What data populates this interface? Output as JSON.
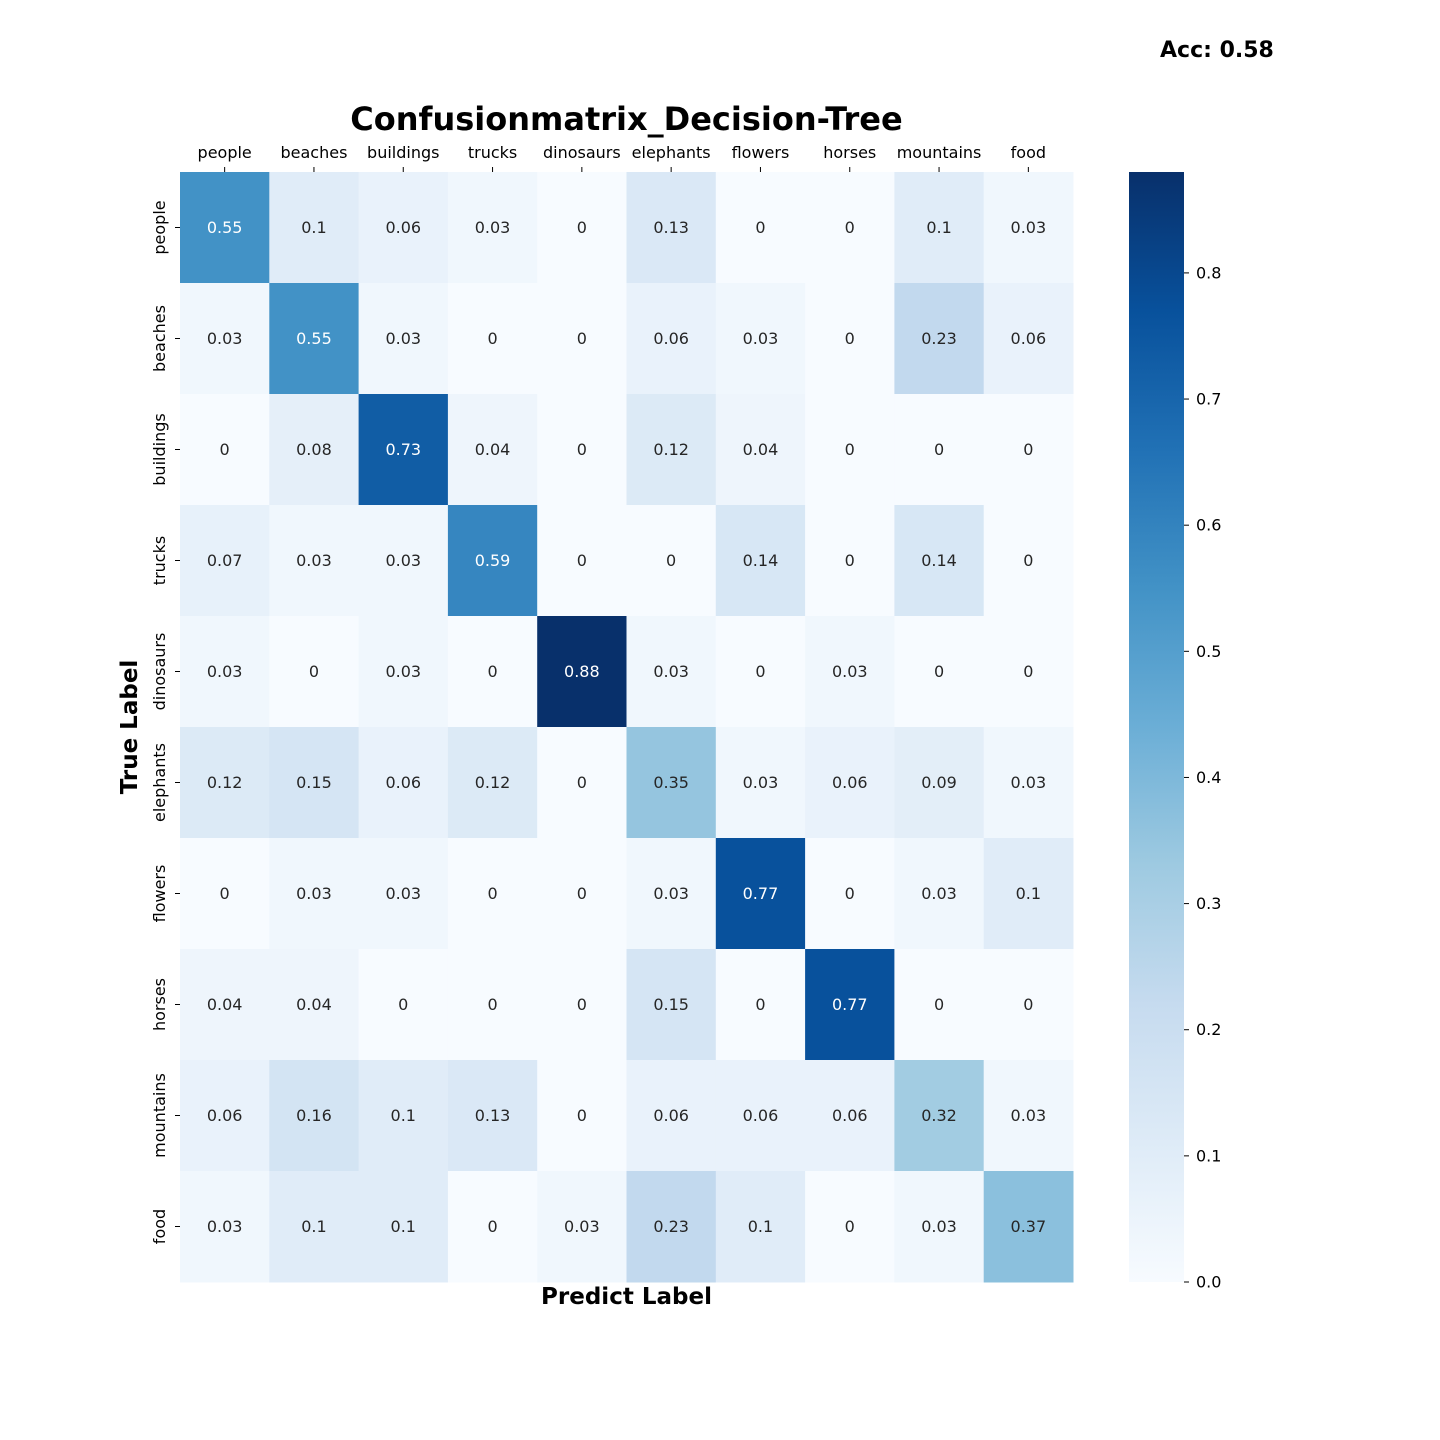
{
  "accuracy_label": "Acc: 0.58",
  "chart_data": {
    "type": "heatmap",
    "title": "Confusionmatrix_Decision-Tree",
    "xlabel": "Predict Label",
    "ylabel": "True Label",
    "x_categories": [
      "people",
      "beaches",
      "buildings",
      "trucks",
      "dinosaurs",
      "elephants",
      "flowers",
      "horses",
      "mountains",
      "food"
    ],
    "y_categories": [
      "people",
      "beaches",
      "buildings",
      "trucks",
      "dinosaurs",
      "elephants",
      "flowers",
      "horses",
      "mountains",
      "food"
    ],
    "x_axis_position": "top",
    "values": [
      [
        0.55,
        0.1,
        0.06,
        0.03,
        0,
        0.13,
        0,
        0,
        0.1,
        0.03
      ],
      [
        0.03,
        0.55,
        0.03,
        0,
        0,
        0.06,
        0.03,
        0,
        0.23,
        0.06
      ],
      [
        0,
        0.08,
        0.73,
        0.04,
        0,
        0.12,
        0.04,
        0,
        0,
        0
      ],
      [
        0.07,
        0.03,
        0.03,
        0.59,
        0,
        0,
        0.14,
        0,
        0.14,
        0
      ],
      [
        0.03,
        0,
        0.03,
        0,
        0.88,
        0.03,
        0,
        0.03,
        0,
        0
      ],
      [
        0.12,
        0.15,
        0.06,
        0.12,
        0,
        0.35,
        0.03,
        0.06,
        0.09,
        0.03
      ],
      [
        0,
        0.03,
        0.03,
        0,
        0,
        0.03,
        0.77,
        0,
        0.03,
        0.1
      ],
      [
        0.04,
        0.04,
        0,
        0,
        0,
        0.15,
        0,
        0.77,
        0,
        0
      ],
      [
        0.06,
        0.16,
        0.1,
        0.13,
        0,
        0.06,
        0.06,
        0.06,
        0.32,
        0.03
      ],
      [
        0.03,
        0.1,
        0.1,
        0,
        0.03,
        0.23,
        0.1,
        0,
        0.03,
        0.37
      ]
    ],
    "colormap": "Blues",
    "colorbar": {
      "range": [
        0,
        0.88
      ],
      "ticks": [
        0.0,
        0.1,
        0.2,
        0.3,
        0.4,
        0.5,
        0.6,
        0.7,
        0.8
      ],
      "tick_labels": [
        "0.0",
        "0.1",
        "0.2",
        "0.3",
        "0.4",
        "0.5",
        "0.6",
        "0.7",
        "0.8"
      ]
    },
    "colors": {
      "low": "#f7fbff",
      "high": "#08306b",
      "text_dark": "#262626",
      "text_light": "#ffffff"
    }
  }
}
